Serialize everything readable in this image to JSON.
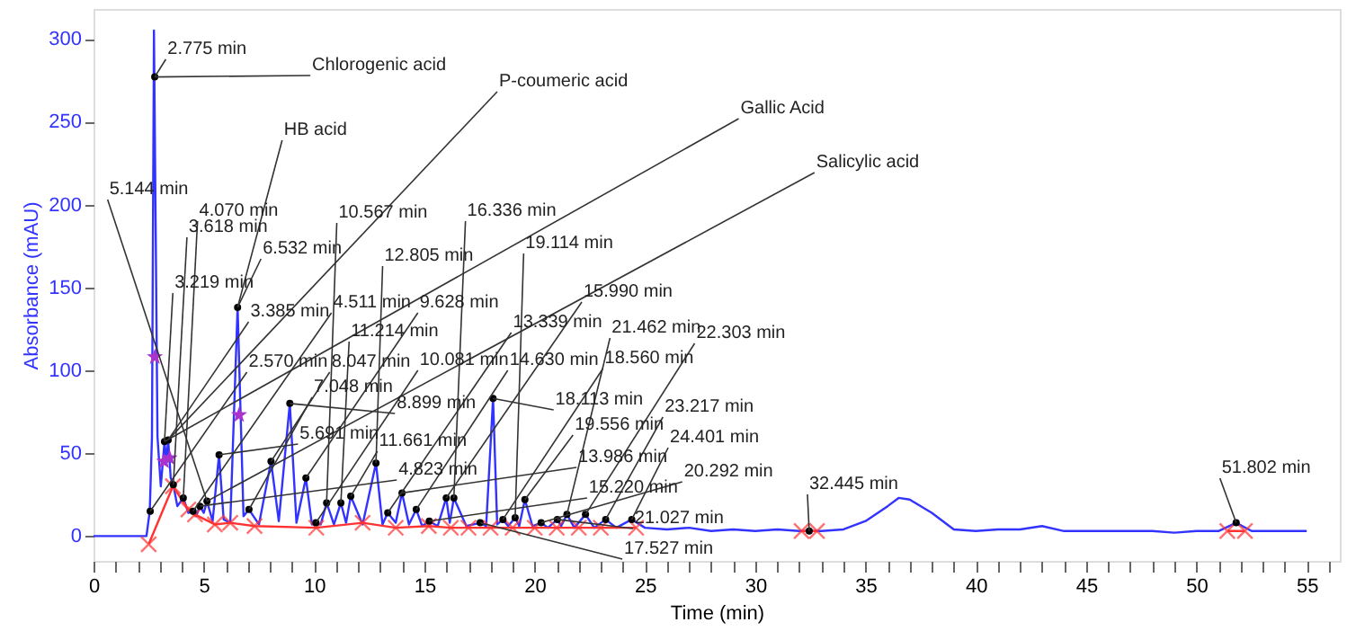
{
  "chart_data": {
    "type": "line",
    "xlabel": "Time (min)",
    "ylabel": "Absorbance (mAU)",
    "xlim": [
      0,
      56.5
    ],
    "ylim": [
      -15,
      318
    ],
    "xticks": [
      0,
      {
        "value": 1,
        "label": null
      },
      {
        "value": 2,
        "label": null
      },
      {
        "value": 3,
        "label": null
      },
      {
        "value": 4,
        "label": null
      },
      5,
      {
        "value": 6,
        "label": null
      },
      {
        "value": 7,
        "label": null
      },
      {
        "value": 8,
        "label": null
      },
      {
        "value": 9,
        "label": null
      },
      10,
      {
        "value": 11,
        "label": null
      },
      {
        "value": 12,
        "label": null
      },
      {
        "value": 13,
        "label": null
      },
      {
        "value": 14,
        "label": null
      },
      15,
      {
        "value": 16,
        "label": null
      },
      {
        "value": 17,
        "label": null
      },
      {
        "value": 18,
        "label": null
      },
      {
        "value": 19,
        "label": null
      },
      20,
      {
        "value": 21,
        "label": null
      },
      {
        "value": 22,
        "label": null
      },
      {
        "value": 23,
        "label": null
      },
      {
        "value": 24,
        "label": null
      },
      25,
      {
        "value": 26,
        "label": null
      },
      {
        "value": 27,
        "label": null
      },
      {
        "value": 28,
        "label": null
      },
      {
        "value": 29,
        "label": null
      },
      30,
      {
        "value": 31,
        "label": null
      },
      {
        "value": 32,
        "label": null
      },
      {
        "value": 33,
        "label": null
      },
      {
        "value": 34,
        "label": null
      },
      35,
      {
        "value": 36,
        "label": null
      },
      {
        "value": 37,
        "label": null
      },
      {
        "value": 38,
        "label": null
      },
      {
        "value": 39,
        "label": null
      },
      40,
      {
        "value": 41,
        "label": null
      },
      {
        "value": 42,
        "label": null
      },
      {
        "value": 43,
        "label": null
      },
      {
        "value": 44,
        "label": null
      },
      45,
      {
        "value": 46,
        "label": null
      },
      {
        "value": 47,
        "label": null
      },
      {
        "value": 48,
        "label": null
      },
      {
        "value": 49,
        "label": null
      },
      50,
      {
        "value": 51,
        "label": null
      },
      {
        "value": 52,
        "label": null
      },
      {
        "value": 53,
        "label": null
      },
      {
        "value": 54,
        "label": null
      },
      55,
      {
        "value": 56,
        "label": null
      }
    ],
    "yticks": [
      0,
      50,
      100,
      150,
      200,
      250,
      300
    ],
    "grid": false,
    "series": [
      {
        "type": "line",
        "color": "#3333ff",
        "marker": "none",
        "x": [
          0,
          1,
          2,
          2.4,
          2.55,
          2.65,
          2.74,
          2.9,
          3.05,
          3.219,
          3.3,
          3.385,
          3.5,
          3.618,
          3.8,
          4.07,
          4.3,
          4.511,
          4.65,
          4.823,
          5.0,
          5.144,
          5.4,
          5.691,
          5.9,
          6.2,
          6.532,
          6.8,
          7.048,
          7.5,
          8.047,
          8.4,
          8.899,
          9.2,
          9.628,
          9.9,
          10.081,
          10.3,
          10.567,
          10.9,
          11.214,
          11.45,
          11.661,
          12.2,
          12.805,
          13.1,
          13.339,
          13.7,
          13.986,
          14.3,
          14.63,
          14.9,
          15.22,
          15.6,
          15.99,
          16.15,
          16.336,
          16.9,
          17.527,
          17.8,
          18.113,
          18.3,
          18.56,
          18.8,
          19.114,
          19.3,
          19.556,
          19.9,
          20.292,
          20.6,
          21.027,
          21.2,
          21.462,
          21.8,
          22.303,
          22.7,
          23.217,
          23.7,
          24.401,
          25,
          26,
          27,
          28,
          29,
          30,
          31,
          32,
          32.445,
          33,
          34,
          35,
          36,
          36.5,
          37,
          38,
          39,
          40,
          41,
          42,
          43,
          44,
          45,
          46,
          47,
          48,
          49,
          50,
          51,
          51.802,
          52.5,
          53,
          54,
          55
        ],
        "values": [
          0,
          0,
          0,
          0,
          15,
          60,
          305,
          60,
          30,
          57,
          45,
          58,
          35,
          31,
          18,
          23,
          14,
          15,
          12,
          18,
          14,
          21,
          9,
          49,
          10,
          8,
          138,
          12,
          16,
          7,
          45,
          9,
          80,
          8,
          35,
          7,
          8,
          7,
          20,
          7,
          20,
          8,
          24,
          7,
          44,
          7,
          14,
          8,
          26,
          7,
          16,
          6,
          9,
          6,
          23,
          8,
          23,
          6,
          8,
          6,
          83,
          7,
          10,
          6,
          11,
          6,
          22,
          6,
          8,
          5,
          10,
          6,
          13,
          5,
          13,
          5,
          10,
          5,
          10,
          5,
          4,
          5,
          3,
          4,
          3,
          4,
          3,
          3,
          3,
          4,
          9,
          18,
          23,
          22,
          14,
          4,
          3,
          4,
          4,
          6,
          3,
          3,
          3,
          3,
          3,
          2,
          3,
          3,
          8,
          3,
          3,
          3,
          3
        ]
      },
      {
        "type": "line",
        "color": "#ff3333",
        "marker": "cross",
        "x": [
          2.5,
          3.6,
          4.3,
          4.6,
          5.5,
          6.2,
          7.3,
          10.1,
          12.2,
          13.7,
          15.2,
          16.2,
          17,
          18,
          19,
          20,
          21,
          22,
          23,
          24.6,
          28,
          32.1,
          32.8,
          42,
          51.4,
          52.2
        ],
        "values": [
          -5,
          30,
          16,
          13,
          7,
          8,
          6,
          5,
          8,
          5,
          6,
          5,
          5,
          5,
          5,
          5,
          5,
          5,
          5,
          5,
          null,
          3,
          3,
          null,
          3,
          3
        ]
      },
      {
        "type": "scatter",
        "color": "#aa33cc",
        "marker": "star",
        "x": [
          2.78,
          3.2,
          3.45,
          6.6
        ],
        "values": [
          108,
          45,
          47,
          73
        ]
      },
      {
        "type": "scatter",
        "color": "#000000",
        "marker": "circle",
        "x": [
          2.57,
          2.775,
          3.219,
          3.385,
          3.618,
          4.07,
          4.511,
          4.823,
          5.144,
          5.691,
          6.532,
          7.048,
          8.047,
          8.899,
          9.628,
          10.081,
          10.567,
          11.214,
          11.661,
          12.805,
          13.339,
          13.986,
          14.63,
          15.22,
          15.99,
          16.336,
          17.527,
          18.113,
          18.56,
          19.114,
          19.556,
          20.292,
          21.027,
          21.462,
          22.303,
          23.217,
          24.401,
          32.445,
          51.802
        ],
        "values": [
          15,
          277,
          57,
          58,
          31,
          23,
          15,
          18,
          21,
          49,
          138,
          16,
          45,
          80,
          35,
          8,
          20,
          20,
          24,
          44,
          14,
          26,
          16,
          9,
          23,
          23,
          8,
          83,
          10,
          11,
          22,
          8,
          10,
          13,
          13,
          10,
          10,
          3,
          8
        ]
      }
    ],
    "annotations": [
      {
        "text": "2.775 min",
        "x": 2.775,
        "y": 277
      },
      {
        "text": "Chlorogenic acid",
        "x": 2.775,
        "y": 277
      },
      {
        "text": "HB acid",
        "x": 6.532,
        "y": 138
      },
      {
        "text": "P-coumeric acid",
        "x": 3.385,
        "y": 58
      },
      {
        "text": "Gallic Acid",
        "x": 3.219,
        "y": 57
      },
      {
        "text": "Salicylic acid",
        "x": 5.144,
        "y": 21
      },
      {
        "text": "5.144 min",
        "x": 5.144,
        "y": 21
      },
      {
        "text": "4.070 min",
        "x": 4.07,
        "y": 23
      },
      {
        "text": "3.618 min",
        "x": 3.618,
        "y": 31
      },
      {
        "text": "6.532 min",
        "x": 6.532,
        "y": 138
      },
      {
        "text": "10.567 min",
        "x": 10.567,
        "y": 20
      },
      {
        "text": "16.336 min",
        "x": 16.336,
        "y": 23
      },
      {
        "text": "12.805 min",
        "x": 12.805,
        "y": 44
      },
      {
        "text": "19.114 min",
        "x": 19.114,
        "y": 11
      },
      {
        "text": "3.219 min",
        "x": 3.219,
        "y": 57
      },
      {
        "text": "3.385 min",
        "x": 3.385,
        "y": 58
      },
      {
        "text": "4.511 min",
        "x": 4.511,
        "y": 15
      },
      {
        "text": "9.628 min",
        "x": 9.628,
        "y": 35
      },
      {
        "text": "11.214 min",
        "x": 11.214,
        "y": 20
      },
      {
        "text": "15.990 min",
        "x": 15.99,
        "y": 23
      },
      {
        "text": "13.339 min",
        "x": 13.339,
        "y": 14
      },
      {
        "text": "21.462 min",
        "x": 21.462,
        "y": 13
      },
      {
        "text": "22.303 min",
        "x": 22.303,
        "y": 13
      },
      {
        "text": "2.570 min",
        "x": 2.57,
        "y": 15
      },
      {
        "text": "8.047 min",
        "x": 8.047,
        "y": 45
      },
      {
        "text": "10.081 min",
        "x": 10.081,
        "y": 8
      },
      {
        "text": "14.630 min",
        "x": 14.63,
        "y": 16
      },
      {
        "text": "18.560 min",
        "x": 18.56,
        "y": 10
      },
      {
        "text": "18.113 min",
        "x": 18.113,
        "y": 83
      },
      {
        "text": "7.048 min",
        "x": 7.048,
        "y": 16
      },
      {
        "text": "8.899 min",
        "x": 8.899,
        "y": 80
      },
      {
        "text": "23.217 min",
        "x": 23.217,
        "y": 10
      },
      {
        "text": "19.556 min",
        "x": 19.556,
        "y": 22
      },
      {
        "text": "24.401 min",
        "x": 24.401,
        "y": 10
      },
      {
        "text": "5.691 min",
        "x": 5.691,
        "y": 49
      },
      {
        "text": "11.661 min",
        "x": 11.661,
        "y": 24
      },
      {
        "text": "13.986 min",
        "x": 13.986,
        "y": 26
      },
      {
        "text": "4.823 min",
        "x": 4.823,
        "y": 18
      },
      {
        "text": "20.292 min",
        "x": 20.292,
        "y": 8
      },
      {
        "text": "15.220 min",
        "x": 15.22,
        "y": 9
      },
      {
        "text": "21.027 min",
        "x": 21.027,
        "y": 10
      },
      {
        "text": "17.527 min",
        "x": 17.527,
        "y": 8
      },
      {
        "text": "32.445 min",
        "x": 32.445,
        "y": 3
      },
      {
        "text": "51.802 min",
        "x": 51.802,
        "y": 8
      }
    ]
  }
}
